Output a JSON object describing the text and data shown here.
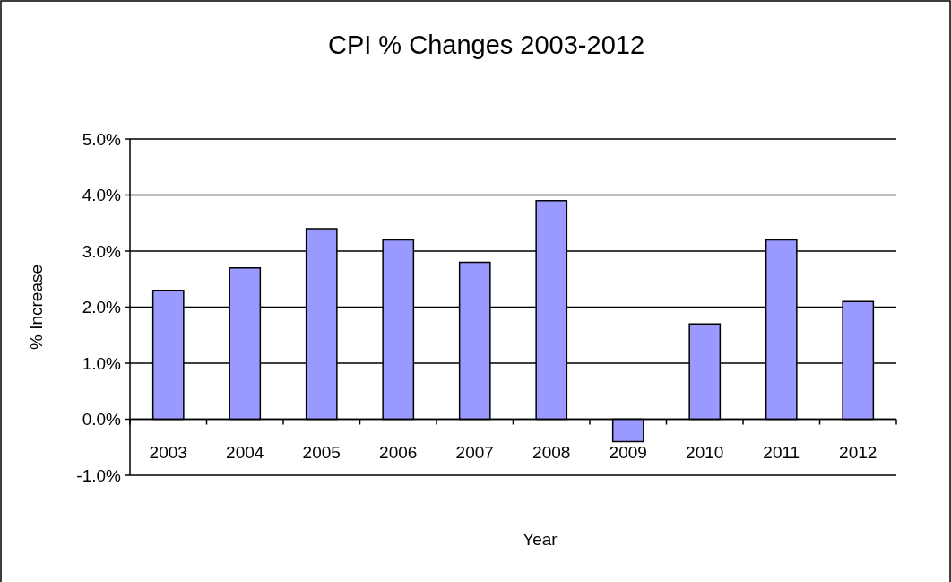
{
  "chart_data": {
    "type": "bar",
    "title": "CPI % Changes 2003-2012",
    "xlabel": "Year",
    "ylabel": "% Increase",
    "categories": [
      "2003",
      "2004",
      "2005",
      "2006",
      "2007",
      "2008",
      "2009",
      "2010",
      "2011",
      "2012"
    ],
    "values": [
      2.3,
      2.7,
      3.4,
      3.2,
      2.8,
      3.9,
      -0.4,
      1.7,
      3.2,
      2.1
    ],
    "color": "#9999ff",
    "ylim": [
      -1,
      5
    ],
    "yticks": [
      {
        "value": -1,
        "label": "-1.0%"
      },
      {
        "value": 0,
        "label": "0.0%"
      },
      {
        "value": 1,
        "label": "1.0%"
      },
      {
        "value": 2,
        "label": "2.0%"
      },
      {
        "value": 3,
        "label": "3.0%"
      },
      {
        "value": 4,
        "label": "4.0%"
      },
      {
        "value": 5,
        "label": "5.0%"
      }
    ],
    "grid": "y"
  }
}
